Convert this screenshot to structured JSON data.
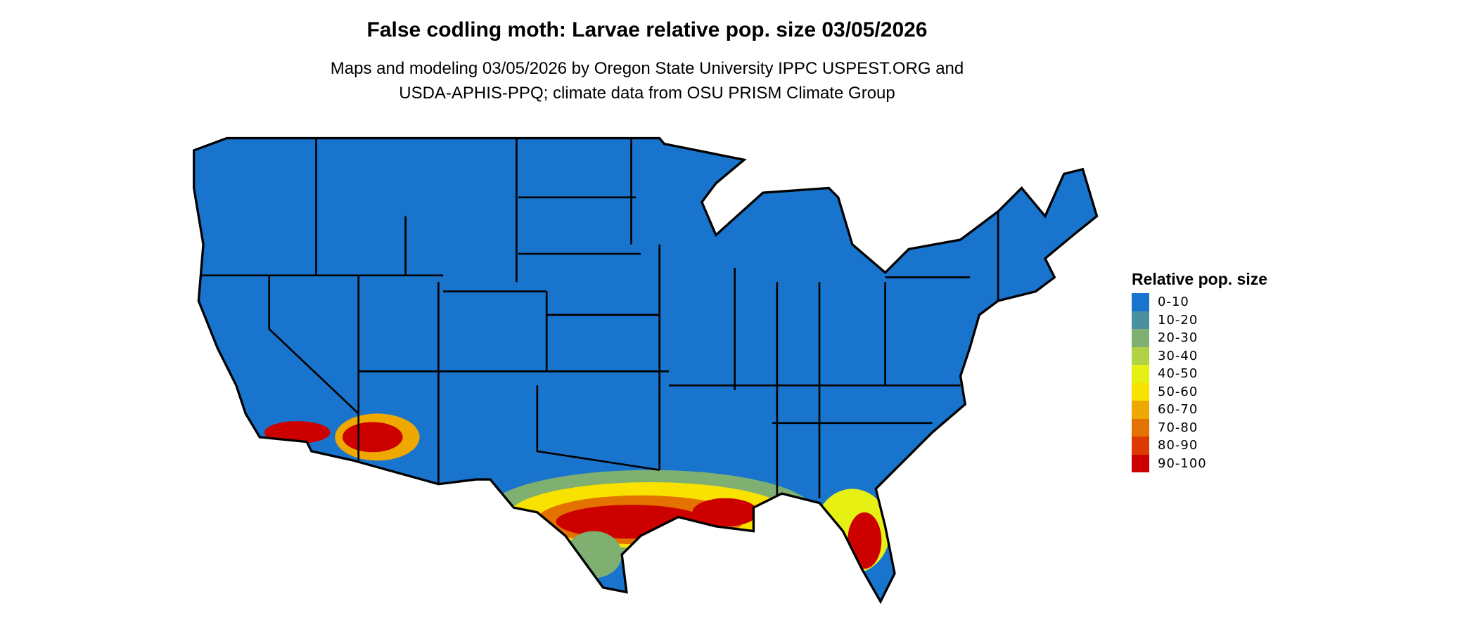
{
  "title": "False codling moth: Larvae relative pop. size 03/05/2026",
  "subtitle_line1": "Maps and modeling 03/05/2026 by Oregon State University IPPC USPEST.ORG and",
  "subtitle_line2": "USDA-APHIS-PPQ; climate data from OSU PRISM Climate Group",
  "legend": {
    "title": "Relative pop. size",
    "items": [
      {
        "label": "0-10",
        "color": "#1874CD"
      },
      {
        "label": "10-20",
        "color": "#4A90A0"
      },
      {
        "label": "20-30",
        "color": "#7FB072"
      },
      {
        "label": "30-40",
        "color": "#B3D145"
      },
      {
        "label": "40-50",
        "color": "#E6F013"
      },
      {
        "label": "50-60",
        "color": "#F9E100"
      },
      {
        "label": "60-70",
        "color": "#EEA800"
      },
      {
        "label": "70-80",
        "color": "#E37200"
      },
      {
        "label": "80-90",
        "color": "#DC3A00"
      },
      {
        "label": "90-100",
        "color": "#CD0000"
      }
    ]
  }
}
